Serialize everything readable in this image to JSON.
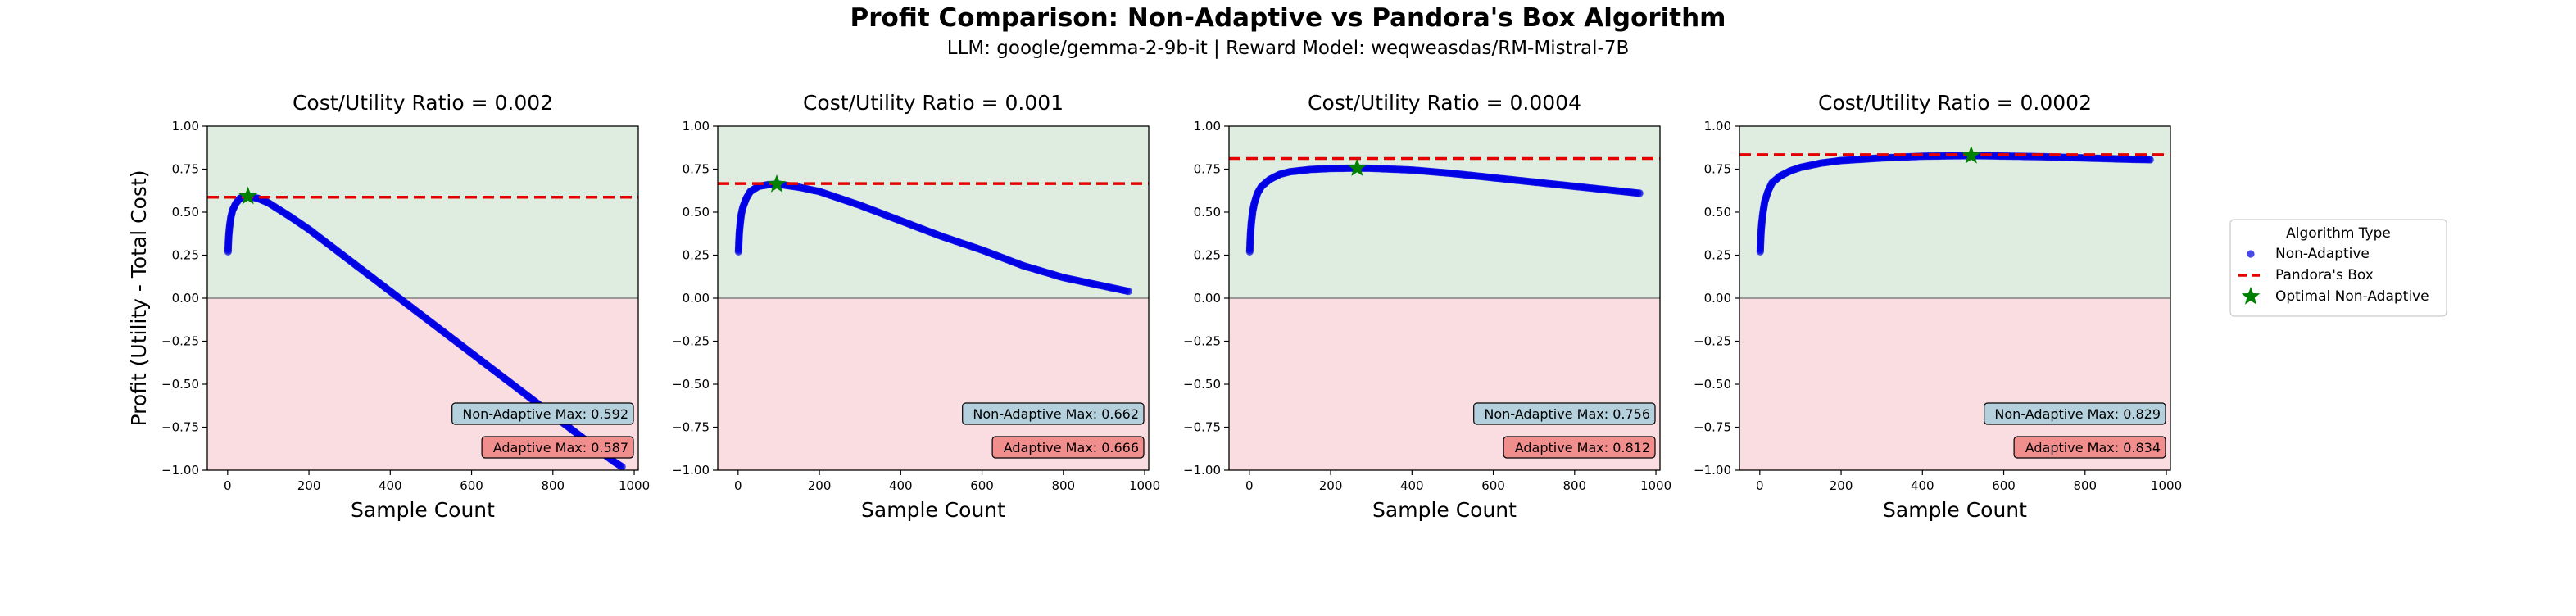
{
  "title": "Profit Comparison: Non-Adaptive vs Pandora's Box Algorithm",
  "subtitle": "LLM: google/gemma-2-9b-it  |  Reward Model: weqweasdas/RM-Mistral-7B",
  "ylabel": "Profit (Utility - Total Cost)",
  "legend": {
    "title": "Algorithm Type",
    "entries": [
      "Non-Adaptive",
      "Pandora's Box",
      "Optimal Non-Adaptive"
    ]
  },
  "colors": {
    "non_adaptive": "#0000e6",
    "pandora": "#e60000",
    "optimal": "#008000",
    "profit_bg": "#dfece0",
    "loss_bg": "#f9dde0",
    "nonadaptive_box": "#b3d0dc",
    "adaptive_box": "#f08d8d"
  },
  "chart_data": [
    {
      "type": "scatter",
      "title": "Cost/Utility Ratio = 0.002",
      "xlabel": "Sample Count",
      "ylabel": "Profit (Utility - Total Cost)",
      "xlim": [
        -50,
        1010
      ],
      "ylim": [
        -1.0,
        1.0
      ],
      "xticks": [
        "0",
        "200",
        "400",
        "600",
        "800",
        "1000"
      ],
      "yticks": [
        "1.00",
        "0.75",
        "0.50",
        "0.25",
        "0.00",
        "−0.25",
        "−0.50",
        "−0.75",
        "−1.00"
      ],
      "series": [
        {
          "name": "Non-Adaptive",
          "x": [
            1,
            2,
            3,
            5,
            8,
            12,
            20,
            30,
            40,
            50,
            75,
            100,
            150,
            200,
            300,
            400,
            500,
            600,
            700,
            800,
            900,
            950,
            970
          ],
          "y": [
            0.27,
            0.33,
            0.37,
            0.42,
            0.47,
            0.51,
            0.55,
            0.58,
            0.59,
            0.592,
            0.58,
            0.555,
            0.48,
            0.4,
            0.22,
            0.04,
            -0.14,
            -0.32,
            -0.5,
            -0.68,
            -0.86,
            -0.95,
            -0.98
          ]
        },
        {
          "name": "Pandora's Box",
          "y": 0.587
        }
      ],
      "optimal": {
        "x": 50,
        "y": 0.592
      },
      "annotations": {
        "non_adaptive": "Non-Adaptive Max: 0.592",
        "adaptive": "Adaptive Max: 0.587"
      }
    },
    {
      "type": "scatter",
      "title": "Cost/Utility Ratio = 0.001",
      "xlabel": "Sample Count",
      "ylabel": "",
      "xlim": [
        -50,
        1010
      ],
      "ylim": [
        -1.0,
        1.0
      ],
      "xticks": [
        "0",
        "200",
        "400",
        "600",
        "800",
        "1000"
      ],
      "yticks": [
        "1.00",
        "0.75",
        "0.50",
        "0.25",
        "0.00",
        "−0.25",
        "−0.50",
        "−0.75",
        "−1.00"
      ],
      "series": [
        {
          "name": "Non-Adaptive",
          "x": [
            1,
            2,
            3,
            5,
            8,
            12,
            20,
            30,
            50,
            75,
            100,
            150,
            200,
            300,
            400,
            500,
            600,
            700,
            800,
            900,
            960
          ],
          "y": [
            0.27,
            0.33,
            0.38,
            0.43,
            0.49,
            0.53,
            0.58,
            0.62,
            0.65,
            0.66,
            0.662,
            0.645,
            0.62,
            0.54,
            0.45,
            0.36,
            0.28,
            0.19,
            0.12,
            0.07,
            0.04
          ]
        },
        {
          "name": "Pandora's Box",
          "y": 0.666
        }
      ],
      "optimal": {
        "x": 95,
        "y": 0.662
      },
      "annotations": {
        "non_adaptive": "Non-Adaptive Max: 0.662",
        "adaptive": "Adaptive Max: 0.666"
      }
    },
    {
      "type": "scatter",
      "title": "Cost/Utility Ratio = 0.0004",
      "xlabel": "Sample Count",
      "ylabel": "",
      "xlim": [
        -50,
        1010
      ],
      "ylim": [
        -1.0,
        1.0
      ],
      "xticks": [
        "0",
        "200",
        "400",
        "600",
        "800",
        "1000"
      ],
      "yticks": [
        "1.00",
        "0.75",
        "0.50",
        "0.25",
        "0.00",
        "−0.25",
        "−0.50",
        "−0.75",
        "−1.00"
      ],
      "series": [
        {
          "name": "Non-Adaptive",
          "x": [
            1,
            2,
            3,
            5,
            8,
            12,
            20,
            30,
            50,
            75,
            100,
            150,
            200,
            265,
            300,
            400,
            500,
            600,
            700,
            800,
            900,
            960
          ],
          "y": [
            0.27,
            0.33,
            0.38,
            0.44,
            0.5,
            0.55,
            0.61,
            0.65,
            0.69,
            0.72,
            0.735,
            0.748,
            0.754,
            0.756,
            0.755,
            0.745,
            0.725,
            0.7,
            0.675,
            0.65,
            0.625,
            0.61
          ]
        },
        {
          "name": "Pandora's Box",
          "y": 0.812
        }
      ],
      "optimal": {
        "x": 265,
        "y": 0.756
      },
      "annotations": {
        "non_adaptive": "Non-Adaptive Max: 0.756",
        "adaptive": "Adaptive Max: 0.812"
      }
    },
    {
      "type": "scatter",
      "title": "Cost/Utility Ratio = 0.0002",
      "xlabel": "Sample Count",
      "ylabel": "",
      "xlim": [
        -50,
        1010
      ],
      "ylim": [
        -1.0,
        1.0
      ],
      "xticks": [
        "0",
        "200",
        "400",
        "600",
        "800",
        "1000"
      ],
      "yticks": [
        "1.00",
        "0.75",
        "0.50",
        "0.25",
        "0.00",
        "−0.25",
        "−0.50",
        "−0.75",
        "−1.00"
      ],
      "series": [
        {
          "name": "Non-Adaptive",
          "x": [
            1,
            2,
            3,
            5,
            8,
            12,
            20,
            30,
            50,
            75,
            100,
            150,
            200,
            300,
            400,
            520,
            600,
            700,
            800,
            900,
            960
          ],
          "y": [
            0.27,
            0.33,
            0.38,
            0.44,
            0.5,
            0.56,
            0.62,
            0.67,
            0.71,
            0.74,
            0.76,
            0.785,
            0.8,
            0.815,
            0.825,
            0.829,
            0.826,
            0.822,
            0.815,
            0.808,
            0.805
          ]
        },
        {
          "name": "Pandora's Box",
          "y": 0.834
        }
      ],
      "optimal": {
        "x": 520,
        "y": 0.829
      },
      "annotations": {
        "non_adaptive": "Non-Adaptive Max: 0.829",
        "adaptive": "Adaptive Max: 0.834"
      }
    }
  ]
}
